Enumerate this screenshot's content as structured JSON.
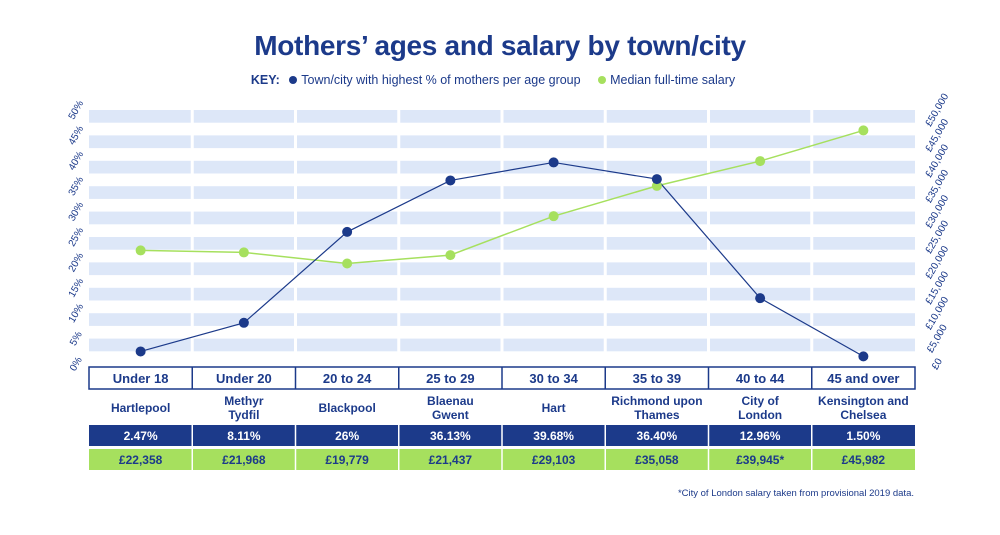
{
  "key": {
    "label": "KEY:",
    "series1": "Town/city with highest % of mothers per age group",
    "series2": "Median full-time salary"
  },
  "colors": {
    "navy": "#1c3a8a",
    "green": "#a6e05e",
    "stripe": "#dde7f8"
  },
  "chart_data": {
    "type": "line",
    "title": "Mothers’ ages and salary by town/city",
    "categories": [
      "Under 18",
      "Under 20",
      "20 to 24",
      "25 to 29",
      "30 to 34",
      "35 to 39",
      "40 to 44",
      "45 and over"
    ],
    "towns": [
      "Hartlepool",
      "Methyr Tydfil",
      "Blackpool",
      "Blaenau Gwent",
      "Hart",
      "Richmond upon Thames",
      "City of London",
      "Kensington and Chelsea"
    ],
    "pct_labels": [
      "2.47%",
      "8.11%",
      "26%",
      "36.13%",
      "39.68%",
      "36.40%",
      "12.96%",
      "1.50%"
    ],
    "salary_labels": [
      "£22,358",
      "£21,968",
      "£19,779",
      "£21,437",
      "£29,103",
      "£35,058",
      "£39,945*",
      "£45,982"
    ],
    "series": [
      {
        "name": "Town/city with highest % of mothers per age group",
        "axis": "left",
        "values": [
          2.47,
          8.11,
          26,
          36.13,
          39.68,
          36.4,
          12.96,
          1.5
        ]
      },
      {
        "name": "Median full-time salary",
        "axis": "right",
        "values": [
          22358,
          21968,
          19779,
          21437,
          29103,
          35058,
          39945,
          45982
        ]
      }
    ],
    "yleft": {
      "ticks": [
        "0%",
        "5%",
        "10%",
        "15%",
        "20%",
        "25%",
        "30%",
        "35%",
        "40%",
        "45%",
        "50%"
      ],
      "range": [
        0,
        50
      ]
    },
    "yright": {
      "ticks": [
        "£0",
        "£5,000",
        "£10,000",
        "£15,000",
        "£20,000",
        "£25,000",
        "£30,000",
        "£35,000",
        "£40,000",
        "£45,000",
        "£50,000"
      ],
      "range": [
        0,
        50000
      ]
    }
  },
  "footnote": "*City of London salary taken from provisional 2019 data."
}
